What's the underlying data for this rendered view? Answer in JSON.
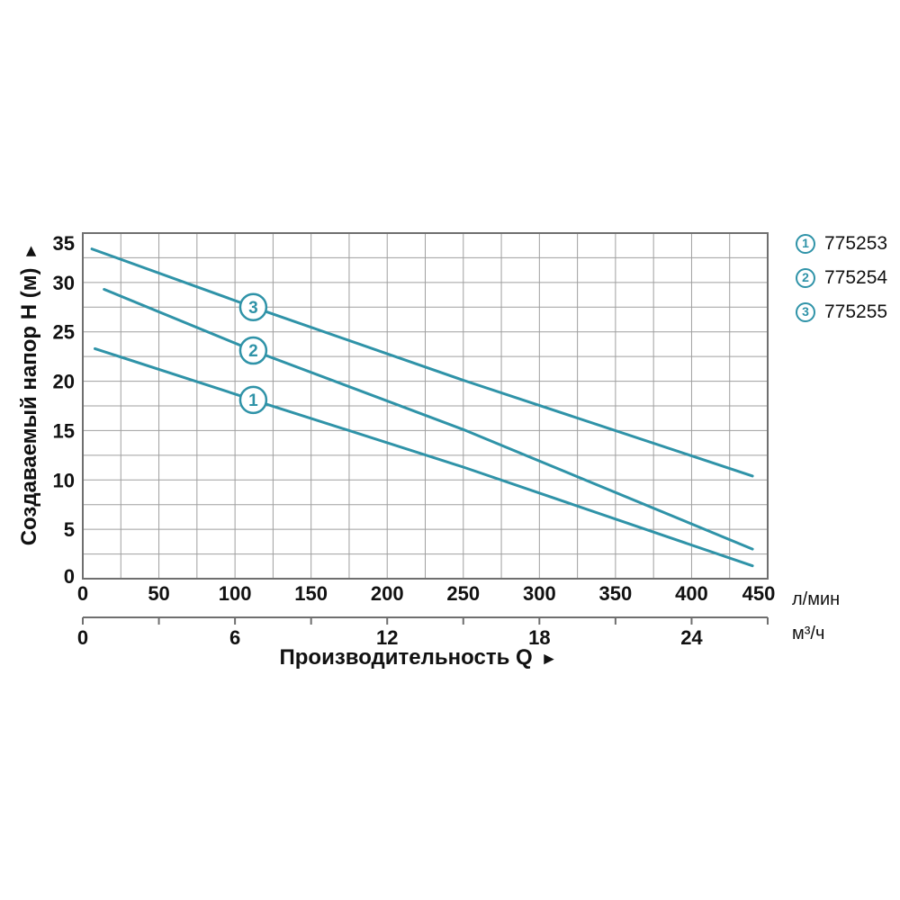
{
  "figure": {
    "x_title": "Производительность Q",
    "x_title_arrow": "►",
    "y_title": "Создаваемый напор H (м)",
    "y_title_arrow": "►",
    "primary_x_unit": "л/мин",
    "secondary_x_unit": "м³/ч"
  },
  "legend": {
    "position": "top-right",
    "items": [
      {
        "marker": "1",
        "label": "775253"
      },
      {
        "marker": "2",
        "label": "775254"
      },
      {
        "marker": "3",
        "label": "775255"
      }
    ]
  },
  "chart_data": {
    "type": "line",
    "title": "",
    "xlabel": "Производительность Q",
    "ylabel": "Создаваемый напор H (м)",
    "grid": true,
    "legend_position": "top-right",
    "x_axis_primary": {
      "unit": "л/мин",
      "min": 0,
      "max": 450,
      "tick_labels": [
        0,
        50,
        100,
        150,
        200,
        250,
        300,
        350,
        400,
        450
      ],
      "minor_grid_step": 25
    },
    "x_axis_secondary": {
      "unit": "м³/ч",
      "min": 0,
      "max": 27,
      "tick_step": 3,
      "tick_labels": [
        0,
        6,
        12,
        18,
        24
      ]
    },
    "y_axis": {
      "unit": "м",
      "min": 0,
      "max": 35,
      "tick_labels": [
        0,
        5,
        10,
        15,
        20,
        25,
        30,
        35
      ],
      "minor_grid_step": 2.5
    },
    "series": [
      {
        "marker_number": "1",
        "name": "775253",
        "points": [
          [
            8,
            23.3
          ],
          [
            112,
            18.1
          ],
          [
            250,
            11.3
          ],
          [
            440,
            1.3
          ]
        ],
        "marker_at": [
          112,
          18.1
        ]
      },
      {
        "marker_number": "2",
        "name": "775254",
        "points": [
          [
            14,
            29.3
          ],
          [
            112,
            23.1
          ],
          [
            250,
            15.1
          ],
          [
            440,
            3.0
          ]
        ],
        "marker_at": [
          112,
          23.1
        ]
      },
      {
        "marker_number": "3",
        "name": "775255",
        "points": [
          [
            6,
            33.4
          ],
          [
            112,
            27.5
          ],
          [
            250,
            20.1
          ],
          [
            440,
            10.4
          ]
        ],
        "marker_at": [
          112,
          27.5
        ]
      }
    ],
    "colors": {
      "curve": "#2f93a8",
      "grid_line": "#9f9f9f",
      "frame": "#6f6f6f",
      "text": "#111111"
    }
  }
}
